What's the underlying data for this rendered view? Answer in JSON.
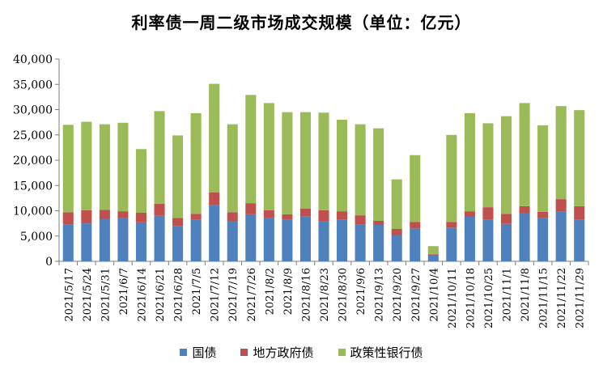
{
  "chart_data": {
    "type": "bar",
    "stacked": true,
    "title": "利率债一周二级市场成交规模（单位：亿元）",
    "categories": [
      "2021/5/17",
      "2021/5/24",
      "2021/5/31",
      "2021/6/7",
      "2021/6/14",
      "2021/6/21",
      "2021/6/28",
      "2021/7/5",
      "2021/7/12",
      "2021/7/19",
      "2021/7/26",
      "2021/8/2",
      "2021/8/9",
      "2021/8/16",
      "2021/8/23",
      "2021/8/30",
      "2021/9/6",
      "2021/9/13",
      "2021/9/20",
      "2021/9/27",
      "2021/10/4",
      "2021/10/11",
      "2021/10/18",
      "2021/10/25",
      "2021/11/1",
      "2021/11/8",
      "2021/11/15",
      "2021/11/22",
      "2021/11/29"
    ],
    "series": [
      {
        "name": "国债",
        "color": "#4F81BD",
        "values": [
          7300,
          7500,
          8400,
          8500,
          7700,
          9000,
          7000,
          8200,
          11100,
          8000,
          9300,
          8500,
          8300,
          8900,
          7900,
          8300,
          7300,
          7200,
          5200,
          6500,
          1200,
          6600,
          8800,
          8200,
          7400,
          9600,
          8500,
          9800,
          8300
        ]
      },
      {
        "name": "地方政府债",
        "color": "#C0504D",
        "values": [
          2400,
          2600,
          1800,
          1400,
          1900,
          2400,
          1600,
          1200,
          2500,
          1700,
          2200,
          1600,
          1000,
          1500,
          2200,
          1600,
          1800,
          800,
          1200,
          1300,
          200,
          1200,
          1100,
          2500,
          2000,
          1300,
          1300,
          2500,
          2600
        ]
      },
      {
        "name": "政策性银行债",
        "color": "#9BBB59",
        "values": [
          17300,
          17500,
          16900,
          17500,
          12600,
          18300,
          16300,
          19900,
          21500,
          17400,
          21400,
          21200,
          20200,
          19100,
          19300,
          18100,
          18000,
          18300,
          9800,
          13200,
          1600,
          17200,
          19400,
          16600,
          19300,
          20400,
          17100,
          18400,
          19000
        ]
      }
    ],
    "ylim": [
      0,
      40000
    ],
    "yticks": [
      0,
      5000,
      10000,
      15000,
      20000,
      25000,
      30000,
      35000,
      40000
    ],
    "ytick_labels": [
      "0",
      "5,000",
      "10,000",
      "15,000",
      "20,000",
      "25,000",
      "30,000",
      "35,000",
      "40,000"
    ],
    "xlabel": "",
    "ylabel": "",
    "grid": false,
    "legend_position": "bottom"
  }
}
